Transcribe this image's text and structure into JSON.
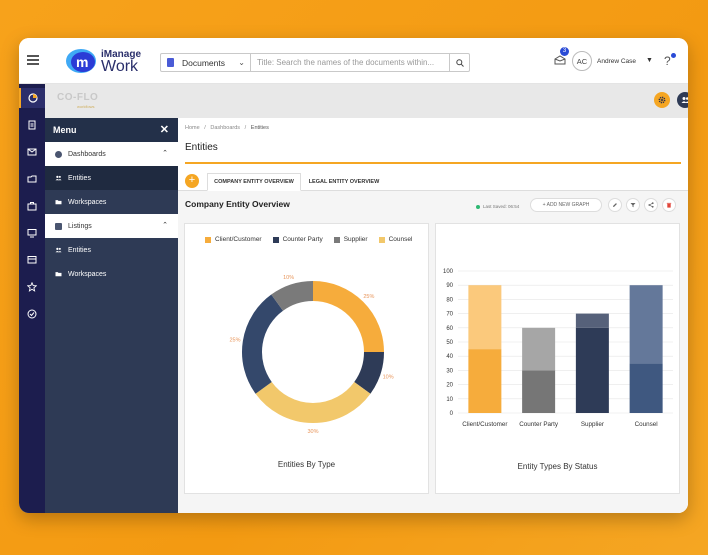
{
  "header": {
    "brand": "iManage",
    "product": "Work",
    "search_type": "Documents",
    "search_placeholder": "Title: Search the names of the documents within...",
    "notifications_count": "3",
    "avatar_initials": "AC",
    "user_name": "Andrew Case",
    "help": "?"
  },
  "app": {
    "logo": "CO-FLO",
    "logo_sub": "workflows",
    "settings_icon": "gear-icon",
    "users_icon": "users-icon"
  },
  "rail": {
    "icons": [
      "coflo-icon",
      "document-icon",
      "mail-icon",
      "folder-icon",
      "briefcase-icon",
      "monitor-icon",
      "board-icon",
      "star-icon",
      "check-circle-icon"
    ]
  },
  "menu": {
    "title": "Menu",
    "close": "✕",
    "groups": [
      {
        "label": "Dashboards",
        "items": [
          {
            "label": "Entities"
          },
          {
            "label": "Workspaces"
          }
        ]
      },
      {
        "label": "Listings",
        "items": [
          {
            "label": "Entities"
          },
          {
            "label": "Workspaces"
          }
        ]
      }
    ]
  },
  "breadcrumb": {
    "home": "Home",
    "dashboards": "Dashboards",
    "current": "Entities",
    "sep": "/"
  },
  "page": {
    "title": "Entities",
    "add": "+",
    "tabs": [
      {
        "label": "COMPANY ENTITY OVERVIEW"
      },
      {
        "label": "LEGAL ENTITY OVERVIEW"
      }
    ],
    "section_title": "Company Entity Overview",
    "last_saved": "Last Saved: 06:54",
    "add_graph": "+  ADD NEW GRAPH"
  },
  "colors": {
    "accent": "#f5a623",
    "client": "#f6ac3c",
    "counter": "#2e3b57",
    "supplier": "#7a7a7a",
    "counsel": "#f2c86b",
    "ring_blue": "#34486b"
  },
  "chart_data": [
    {
      "type": "pie",
      "title": "Entities By Type",
      "legend": [
        {
          "name": "Client/Customer",
          "color": "#f6ac3c"
        },
        {
          "name": "Counter Party",
          "color": "#2e3b57"
        },
        {
          "name": "Supplier",
          "color": "#7a7a7a"
        },
        {
          "name": "Counsel",
          "color": "#f2c86b"
        }
      ],
      "slices": [
        {
          "label": "25%",
          "value": 25,
          "color": "#f6ac3c"
        },
        {
          "label": "10%",
          "value": 10,
          "color": "#2e3b57"
        },
        {
          "label": "30%",
          "value": 30,
          "color": "#f2c86b"
        },
        {
          "label": "25%",
          "value": 25,
          "color": "#34486b"
        },
        {
          "label": "10%",
          "value": 10,
          "color": "#7a7a7a"
        }
      ]
    },
    {
      "type": "bar",
      "title": "Entity Types By Status",
      "stacked": true,
      "ylim": [
        0,
        100
      ],
      "yticks": [
        0,
        10,
        20,
        30,
        40,
        50,
        60,
        70,
        80,
        90,
        100
      ],
      "categories": [
        "Client/Customer",
        "Counter Party",
        "Supplier",
        "Counsel"
      ],
      "series": [
        {
          "values": [
            45,
            30,
            60,
            35
          ],
          "colors": [
            "#f6ac3c",
            "#767676",
            "#2e3b57",
            "#3f5880"
          ]
        },
        {
          "values": [
            45,
            30,
            10,
            55
          ],
          "colors": [
            "#fbc97c",
            "#a6a6a6",
            "#56617a",
            "#64789a"
          ]
        }
      ]
    }
  ]
}
